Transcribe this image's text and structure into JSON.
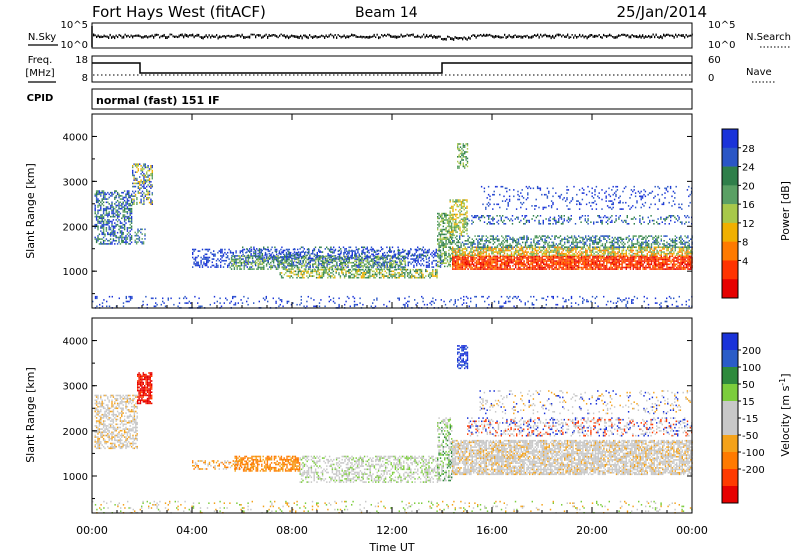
{
  "header": {
    "station": "Fort Hays West (fitACF)",
    "beam": "Beam 14",
    "date": "25/Jan/2014"
  },
  "mode_text": "normal (fast) 151 IF",
  "noise_panel": {
    "left_label": "N.Sky",
    "right_label": "N.Search",
    "left_ticks": [
      "10^5",
      "10^0"
    ],
    "right_ticks": [
      "10^5",
      "10^0"
    ]
  },
  "freq_panel": {
    "left_label_1": "Freq.",
    "left_label_2": "[MHz]",
    "right_label": "Nave",
    "left_ticks": [
      "18",
      "8"
    ],
    "right_ticks": [
      "60",
      "0"
    ]
  },
  "cpid_label": "CPID",
  "colors": {
    "power": [
      "#1a33d9",
      "#2a56c6",
      "#2f7f4a",
      "#5aa064",
      "#a8c84a",
      "#f0b000",
      "#ff7a00",
      "#ff3300",
      "#e60000"
    ],
    "velocity": [
      "#1a33d9",
      "#2a5cc8",
      "#2e8a3c",
      "#7ccd3c",
      "#c8c8c8",
      "#c8c8c8",
      "#f4a21a",
      "#ff7a00",
      "#ff3a00",
      "#e60000"
    ]
  },
  "chart_data": [
    {
      "type": "heatmap",
      "quantity": "Power",
      "ylabel": "Slant Range [km]",
      "ylim": [
        180,
        4500
      ],
      "yticks": [
        "1000",
        "2000",
        "3000",
        "4000"
      ],
      "xlim_hours": [
        0,
        24
      ],
      "colorbar_label": "Power [dB]",
      "colorbar_ticks": [
        "4",
        "8",
        "12",
        "16",
        "20",
        "24",
        "28"
      ]
    },
    {
      "type": "heatmap",
      "quantity": "Velocity",
      "ylabel": "Slant Range [km]",
      "ylim": [
        180,
        4500
      ],
      "yticks": [
        "1000",
        "2000",
        "3000",
        "4000"
      ],
      "xlim_hours": [
        0,
        24
      ],
      "colorbar_label": "Velocity [m s-1]",
      "colorbar_ticks": [
        "200",
        "100",
        "50",
        "15",
        "-15",
        "-50",
        "-100",
        "-200"
      ]
    }
  ],
  "x_axis": {
    "ticks": [
      "00:00",
      "04:00",
      "08:00",
      "12:00",
      "16:00",
      "20:00",
      "00:00"
    ],
    "label": "Time UT"
  }
}
